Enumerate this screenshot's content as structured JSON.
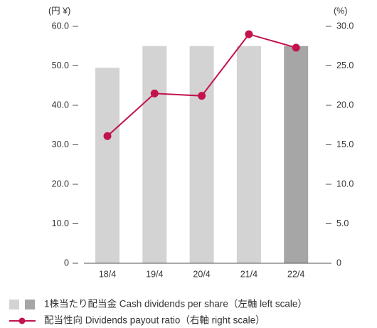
{
  "chart_data": {
    "type": "bar_line",
    "y_unit": "(円 ¥)",
    "y2_unit": "(%)",
    "categories": [
      "18/4",
      "19/4",
      "20/4",
      "21/4",
      "22/4"
    ],
    "series": [
      {
        "name": "1株当たり配当金 Cash dividends per share（左軸 left scale）",
        "type": "bar",
        "color": "#d3d3d3",
        "colors": [
          "#d3d3d3",
          "#d3d3d3",
          "#d3d3d3",
          "#d3d3d3",
          "#a6a6a6"
        ],
        "values": [
          49.5,
          55,
          55,
          55,
          55
        ]
      },
      {
        "name": "配当性向 Dividends payout ratio（右軸 right scale）",
        "type": "line",
        "axis": "y2",
        "color": "#c2134b",
        "values": [
          16.1,
          21.5,
          21.2,
          29.0,
          27.3
        ]
      }
    ],
    "ylim": [
      0,
      60
    ],
    "yticks": [
      0,
      {
        "value": 10,
        "label": "10.0"
      },
      {
        "value": 20,
        "label": "20.0"
      },
      {
        "value": 30,
        "label": "30.0"
      },
      {
        "value": 40,
        "label": "40.0"
      },
      {
        "value": 50,
        "label": "50.0"
      },
      {
        "value": 60,
        "label": "60.0"
      }
    ],
    "y2lim": [
      0,
      30
    ],
    "y2ticks": [
      0,
      {
        "value": 5,
        "label": "5.0"
      },
      {
        "value": 10,
        "label": "10.0"
      },
      {
        "value": 15,
        "label": "15.0"
      },
      {
        "value": 20,
        "label": "20.0"
      },
      {
        "value": 25,
        "label": "25.0"
      },
      {
        "value": 30,
        "label": "30.0"
      }
    ]
  }
}
